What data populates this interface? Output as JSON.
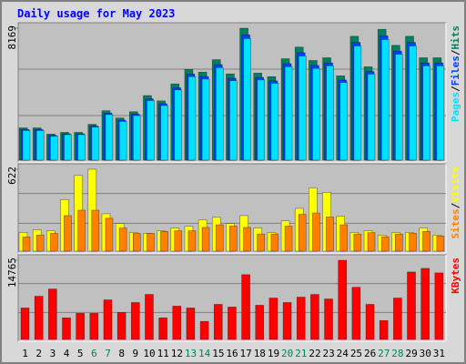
{
  "chart_data": {
    "type": "bar",
    "title": "Daily usage for May 2023",
    "categories": [
      "1",
      "2",
      "3",
      "4",
      "5",
      "6",
      "7",
      "8",
      "9",
      "10",
      "11",
      "12",
      "13",
      "14",
      "15",
      "16",
      "17",
      "18",
      "19",
      "20",
      "21",
      "22",
      "23",
      "24",
      "25",
      "26",
      "27",
      "28",
      "29",
      "30",
      "31"
    ],
    "category_colors": [
      "#000000",
      "#000000",
      "#000000",
      "#000000",
      "#000000",
      "#00805c",
      "#00805c",
      "#000000",
      "#000000",
      "#000000",
      "#000000",
      "#000000",
      "#00805c",
      "#00805c",
      "#000000",
      "#000000",
      "#000000",
      "#000000",
      "#000000",
      "#00805c",
      "#00805c",
      "#000000",
      "#000000",
      "#000000",
      "#000000",
      "#000000",
      "#00805c",
      "#00805c",
      "#000000",
      "#000000",
      "#000000"
    ],
    "legend_separator": "/",
    "panels": [
      {
        "ylim": [
          0,
          8169
        ],
        "yticks": [
          8169
        ],
        "series": [
          {
            "name": "Hits",
            "color": "#00805c",
            "values": [
              2000,
              2000,
              1610,
              1720,
              1720,
              2220,
              3060,
              2610,
              3000,
              4000,
              3670,
              4720,
              5610,
              5450,
              6220,
              5340,
              8169,
              5390,
              5170,
              6280,
              7000,
              6170,
              6340,
              5220,
              7670,
              5780,
              8100,
              7110,
              7670,
              6340,
              6340
            ]
          },
          {
            "name": "Files",
            "color": "#0040ff",
            "values": [
              1900,
              1900,
              1530,
              1630,
              1630,
              2110,
              2910,
              2480,
              2850,
              3800,
              3490,
              4480,
              5330,
              5180,
              5910,
              5070,
              7760,
              5120,
              4910,
              5970,
              6650,
              5860,
              6020,
              4960,
              7290,
              5490,
              7700,
              6750,
              7290,
              6020,
              6020
            ]
          },
          {
            "name": "Pages",
            "color": "#00e0ff",
            "values": [
              1840,
              1840,
              1480,
              1580,
              1580,
              2050,
              2820,
              2400,
              2760,
              3690,
              3380,
              4350,
              5170,
              5020,
              5730,
              4920,
              7530,
              4970,
              4760,
              5790,
              6450,
              5680,
              5840,
              4810,
              7070,
              5330,
              7470,
              6550,
              7070,
              5840,
              5840
            ]
          }
        ]
      },
      {
        "ylim": [
          0,
          622
        ],
        "yticks": [
          622
        ],
        "series": [
          {
            "name": "Visits",
            "color": "#ffff00",
            "values": [
              142,
              162,
              155,
              392,
              575,
              622,
              284,
              210,
              142,
              135,
              155,
              176,
              189,
              237,
              257,
              210,
              270,
              176,
              142,
              230,
              325,
              480,
              446,
              264,
              142,
              155,
              122,
              142,
              142,
              176,
              122
            ]
          },
          {
            "name": "Sites",
            "color": "#ff8000",
            "values": [
              108,
              122,
              135,
              270,
              311,
              311,
              250,
              176,
              135,
              135,
              150,
              155,
              155,
              180,
              200,
              190,
              180,
              130,
              130,
              190,
              280,
              290,
              260,
              200,
              130,
              140,
              110,
              130,
              135,
              150,
              115
            ]
          }
        ]
      },
      {
        "ylim": [
          0,
          14765
        ],
        "yticks": [
          14765
        ],
        "series": [
          {
            "name": "KBytes",
            "color": "#ff0000",
            "values": [
              5870,
              8050,
              9400,
              4030,
              4870,
              4870,
              7380,
              5030,
              6880,
              8390,
              4030,
              6210,
              5870,
              3360,
              6540,
              6040,
              12080,
              6380,
              7720,
              6880,
              7890,
              8390,
              7550,
              14765,
              9730,
              6540,
              3520,
              7720,
              12580,
              13250,
              12410
            ]
          }
        ]
      }
    ]
  }
}
